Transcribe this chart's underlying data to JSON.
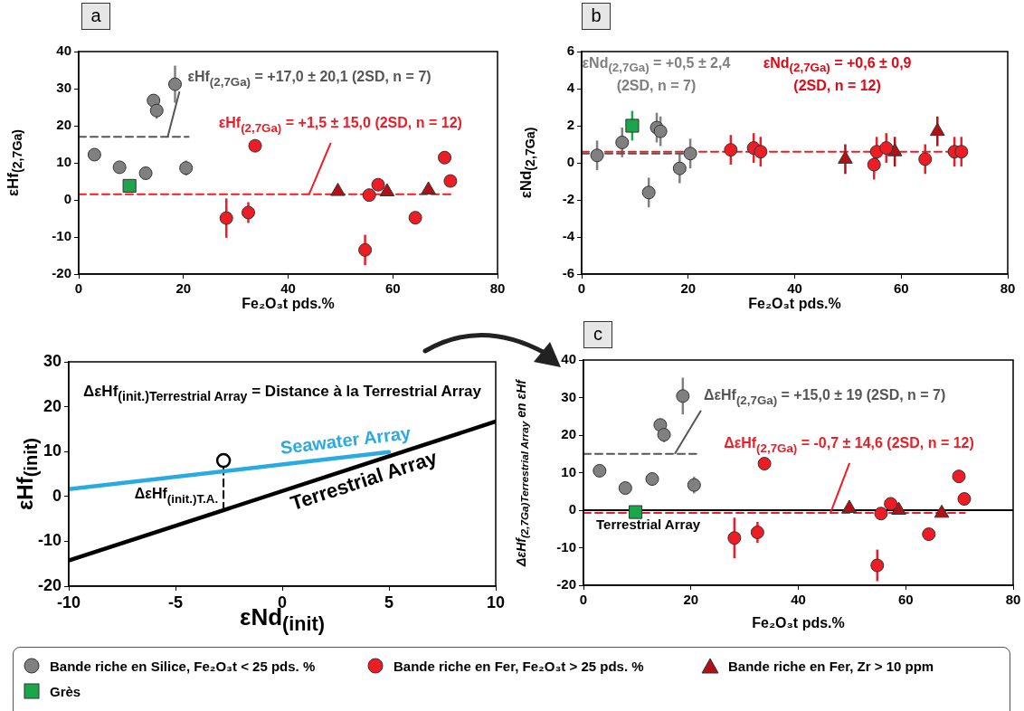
{
  "chart_data": [
    {
      "type": "scatter",
      "title": "a",
      "xlabel": "Fe₂O₃t pds.%",
      "ylabel": "εHf$_{(2,7Ga)}$",
      "xlim": [
        0,
        80
      ],
      "xticks": [
        0,
        20,
        40,
        60,
        80
      ],
      "ylim": [
        -20,
        40
      ],
      "yticks": [
        -20,
        -10,
        0,
        10,
        20,
        30,
        40
      ],
      "series": [
        {
          "color": "#808080",
          "marker": "circle",
          "x": [
            3,
            7.8,
            12.8,
            14.3,
            14.9,
            18.4,
            20.5
          ],
          "values": [
            12.2,
            8.8,
            7.2,
            26.8,
            24.1,
            31.2,
            8.6
          ],
          "errors": [
            null,
            null,
            null,
            null,
            2.2,
            5,
            2
          ]
        },
        {
          "color": "#ee1c25",
          "marker": "circle",
          "x": [
            28.2,
            32.4,
            33.7,
            54.7,
            55.5,
            57.2,
            64.3,
            69.9,
            71.0
          ],
          "values": [
            -4.9,
            -3.4,
            14.6,
            -13.5,
            1.3,
            4.1,
            -4.8,
            11.4,
            5.1
          ],
          "errors": [
            5.3,
            2.8,
            null,
            4.1,
            null,
            1,
            null,
            1,
            null
          ]
        },
        {
          "color": "#b01116",
          "marker": "triangle",
          "x": [
            49.5,
            58.9,
            66.8
          ],
          "values": [
            2.3,
            2.2,
            2.7
          ]
        },
        {
          "color": "#1ca64c",
          "marker": "square",
          "x": [
            9.7
          ],
          "values": [
            3.8
          ]
        },
        {
          "type": "line",
          "color": "#555555",
          "line_style": "dashed",
          "x": [
            0,
            21
          ],
          "values": [
            17,
            17
          ]
        },
        {
          "type": "line",
          "color": "#ee1c25",
          "line_style": "dashed",
          "x": [
            0,
            71
          ],
          "values": [
            1.5,
            1.5
          ]
        }
      ],
      "annotations": [
        {
          "text": "εHf$_{(2,7Ga)}$ = +17,0 ± 20,1 (2SD, n = 7)",
          "x": 17,
          "y": 17
        },
        {
          "text": "εHf$_{(2,7Ga)}$ = +1,5 ± 15,0 (2SD, n = 12)",
          "x": 44,
          "y": 1.5
        }
      ]
    },
    {
      "type": "scatter",
      "title": "b",
      "xlabel": "Fe₂O₃t pds.%",
      "ylabel": "εNd$_{(2,7Ga)}$",
      "xlim": [
        0,
        80
      ],
      "xticks": [
        0,
        20,
        40,
        60,
        80
      ],
      "ylim": [
        -6,
        6
      ],
      "yticks": [
        -6,
        -4,
        -2,
        0,
        2,
        4,
        6
      ],
      "series": [
        {
          "color": "#808080",
          "marker": "circle",
          "x": [
            2.9,
            7.6,
            12.6,
            14.1,
            14.8,
            18.4,
            20.4
          ],
          "values": [
            0.4,
            1.1,
            -1.6,
            1.9,
            1.7,
            -0.3,
            0.5
          ],
          "errors": [
            0.8,
            0.8,
            0.8,
            0.8,
            0.8,
            0.8,
            0.8
          ]
        },
        {
          "color": "#ee1c25",
          "marker": "circle",
          "x": [
            28.0,
            32.3,
            33.6,
            54.9,
            55.4,
            57.2,
            64.5,
            70.0,
            71.3
          ],
          "values": [
            0.7,
            0.8,
            0.6,
            -0.1,
            0.6,
            0.8,
            0.2,
            0.6,
            0.6
          ],
          "errors": [
            0.8,
            0.8,
            0.8,
            0.8,
            0.8,
            0.8,
            0.8,
            0.8,
            0.8
          ]
        },
        {
          "color": "#b01116",
          "marker": "triangle",
          "x": [
            49.5,
            58.8,
            66.8
          ],
          "values": [
            0.2,
            0.6,
            1.7
          ],
          "errors": [
            0.8,
            0.8,
            0.8
          ]
        },
        {
          "color": "#1ca64c",
          "marker": "square",
          "x": [
            9.5
          ],
          "values": [
            2.0
          ],
          "errors": [
            0.8
          ]
        },
        {
          "type": "line",
          "color": "#555555",
          "line_style": "dashed",
          "x": [
            0,
            21
          ],
          "values": [
            0.5,
            0.5
          ]
        },
        {
          "type": "line",
          "color": "#ee1c25",
          "line_style": "dashed",
          "x": [
            0,
            71.5
          ],
          "values": [
            0.6,
            0.6
          ]
        }
      ],
      "annotations": [
        "εNd$_{(2,7Ga)}$ = +0,5 ± 2,4\n(2SD, n = 7)",
        "εNd$_{(2,7Ga)}$ = +0,6 ± 0,9\n(2SD, n = 12)"
      ]
    },
    {
      "type": "line",
      "xlabel": "εNd$_{(init)}$",
      "ylabel": "εHf$_{(init)}$",
      "xlim": [
        -10,
        10
      ],
      "xticks": [
        -10,
        -5,
        0,
        5,
        10
      ],
      "ylim": [
        -20,
        30
      ],
      "yticks": [
        -20,
        -10,
        0,
        10,
        20,
        30
      ],
      "series": [
        {
          "type": "line",
          "name": "Seawater Array",
          "color": "#29abe2",
          "x": [
            -10,
            5
          ],
          "values": [
            1.6,
            9.9
          ]
        },
        {
          "type": "line",
          "name": "Terrestrial Array",
          "color": "#000000",
          "x": [
            -10,
            10
          ],
          "values": [
            -14.3,
            16.7
          ]
        },
        {
          "type": "line",
          "color": "#000000",
          "line_style": "dashed",
          "x": [
            -2.75,
            -2.75
          ],
          "values": [
            -3,
            6.5
          ]
        },
        {
          "type": "scatter",
          "color": "#000000",
          "marker": "circle",
          "x": [
            -2.75
          ],
          "values": [
            8
          ]
        }
      ],
      "annotations": [
        "ΔεHf$_{(init.)Terrestrial Array}$ = Distance à la Terrestrial Array",
        {
          "text": "ΔεHf$_{(init.)T.A.}$",
          "x": -2.75,
          "y": 1.5
        }
      ]
    },
    {
      "type": "scatter",
      "title": "c",
      "xlabel": "Fe₂O₃t pds.%",
      "ylabel": "ΔεHf$_{(2,7Ga)Terrestrial Array}$ en εHf",
      "xlim": [
        0,
        80
      ],
      "xticks": [
        0,
        20,
        40,
        60,
        80
      ],
      "ylim": [
        -20,
        40
      ],
      "yticks": [
        -20,
        -10,
        0,
        10,
        20,
        30,
        40
      ],
      "legend": "bottom",
      "series": [
        {
          "name": "Bande riche en Silice, Fe₂O₃t < 25 pds. %",
          "color": "#808080",
          "marker": "circle",
          "x": [
            3.0,
            7.8,
            12.8,
            14.3,
            15.0,
            18.5,
            20.6
          ],
          "values": [
            10.5,
            5.9,
            8.3,
            22.7,
            20.1,
            30.4,
            6.7
          ],
          "errors": [
            null,
            null,
            null,
            null,
            2,
            4.9,
            2.2
          ]
        },
        {
          "name": "Bande riche en Fer, Fe₂O₃t > 25 pds. %",
          "color": "#ee1c25",
          "marker": "circle",
          "x": [
            28.1,
            32.4,
            33.7,
            54.7,
            55.4,
            57.2,
            64.3,
            69.9,
            70.9
          ],
          "values": [
            -7.4,
            -5.9,
            12.4,
            -14.7,
            -0.9,
            1.7,
            -6.4,
            9.0,
            3.0
          ],
          "errors": [
            5.4,
            2.8,
            null,
            4.2,
            null,
            1,
            null,
            1,
            null
          ]
        },
        {
          "name": "Bande riche en Fer, Zr > 10 ppm",
          "color": "#b01116",
          "marker": "triangle",
          "x": [
            49.5,
            58.7,
            66.7
          ],
          "values": [
            0.5,
            0,
            -0.8
          ]
        },
        {
          "name": "Grès",
          "color": "#1ca64c",
          "marker": "square",
          "x": [
            9.7
          ],
          "values": [
            -0.5
          ]
        },
        {
          "type": "line",
          "color": "#555555",
          "line_style": "dashed",
          "x": [
            0,
            21
          ],
          "values": [
            15,
            15
          ]
        },
        {
          "type": "line",
          "color": "#ee1c25",
          "line_style": "dashed",
          "x": [
            0,
            71
          ],
          "values": [
            -0.7,
            -0.7
          ]
        }
      ],
      "ref_lines": [
        {
          "axis": "y",
          "value": 0,
          "label": "Terrestrial Array",
          "color": "#000000"
        }
      ],
      "annotations": [
        {
          "text": "ΔεHf$_{(2,7Ga)}$ = +15,0 ± 19 (2SD, n = 7)",
          "x": 17,
          "y": 15
        },
        {
          "text": "ΔεHf$_{(2,7Ga)}$ = -0,7 ± 14,6 (2SD, n = 12)",
          "x": 46,
          "y": -0.7
        }
      ]
    }
  ]
}
